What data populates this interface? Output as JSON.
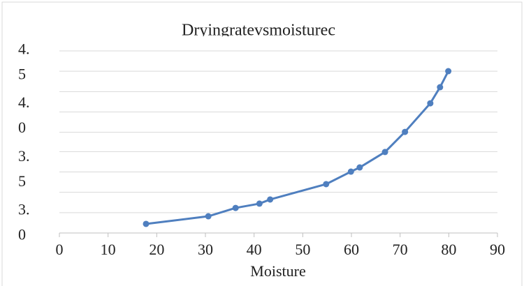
{
  "chart_data": {
    "type": "line",
    "title": "Dryingratevsmoisturec",
    "x_label": "Moisture",
    "xlim": [
      0,
      90
    ],
    "xticks": [
      0,
      10,
      20,
      30,
      40,
      50,
      60,
      70,
      80,
      90
    ],
    "ylim": [
      2.9,
      4.6
    ],
    "yticks": [
      {
        "value": 4.5,
        "label": [
          "4.",
          "5"
        ]
      },
      {
        "value": 4.0,
        "label": [
          "4.",
          "0"
        ]
      },
      {
        "value": 3.5,
        "label": [
          "3.",
          "5"
        ]
      },
      {
        "value": 3.0,
        "label": [
          "3.",
          "0"
        ]
      }
    ],
    "ygrid": [
      2.9,
      3.09,
      3.28,
      3.47,
      3.66,
      3.84,
      4.03,
      4.22,
      4.41,
      4.6
    ],
    "grid": true,
    "series": [
      {
        "color": "#4f7fbf",
        "x": [
          17.8,
          30.6,
          36.2,
          41.1,
          43.3,
          54.8,
          59.9,
          61.7,
          66.9,
          71.0,
          76.2,
          78.2,
          79.9
        ],
        "values": [
          2.985,
          3.056,
          3.134,
          3.174,
          3.213,
          3.356,
          3.473,
          3.512,
          3.656,
          3.844,
          4.111,
          4.261,
          4.411
        ]
      }
    ]
  }
}
